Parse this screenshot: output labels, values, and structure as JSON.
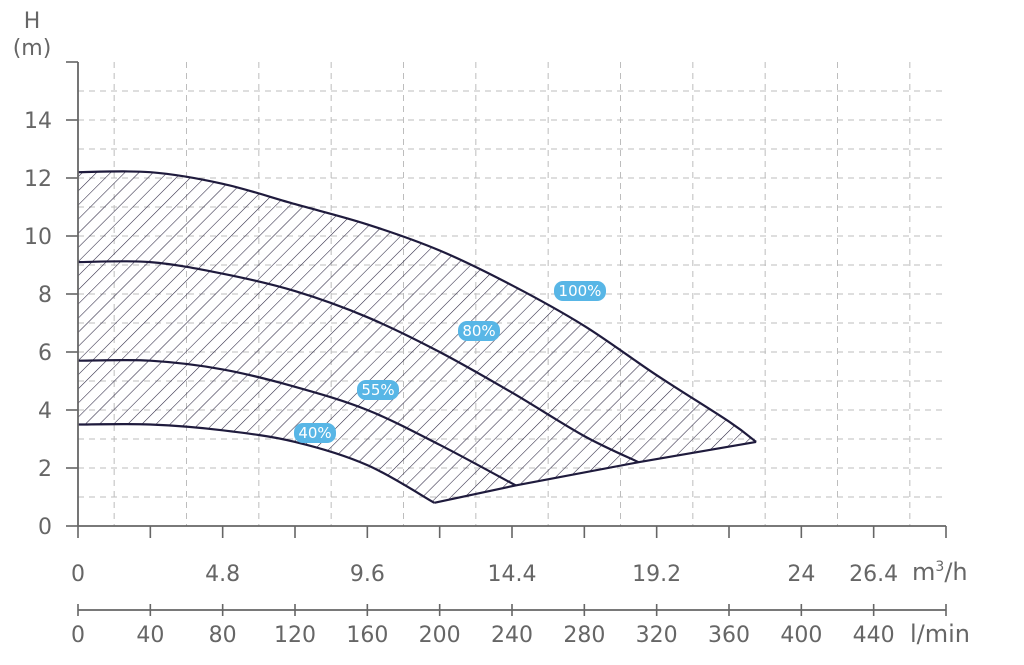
{
  "chart_data": {
    "type": "line",
    "y_axis": {
      "label_top": "H",
      "label_unit": "(m)",
      "ticks": [
        0,
        2,
        4,
        6,
        8,
        10,
        12,
        14
      ],
      "ylim": [
        0,
        16
      ]
    },
    "x_axis_flow_m3h": {
      "unit": "m³/h",
      "unit_base": "m",
      "unit_sup": "3",
      "unit_tail": "/h",
      "ticks": [
        "0",
        "4.8",
        "9.6",
        "14.4",
        "19.2",
        "24",
        "26.4"
      ],
      "tick_values": [
        0,
        4.8,
        9.6,
        14.4,
        19.2,
        24,
        26.4
      ]
    },
    "x_axis_flow_lmin": {
      "unit": "l/min",
      "ticks": [
        "0",
        "40",
        "80",
        "120",
        "160",
        "200",
        "240",
        "280",
        "320",
        "360",
        "400",
        "440"
      ],
      "xlim": [
        0,
        480
      ]
    },
    "grid": true,
    "series": [
      {
        "name": "100%",
        "x": [
          0,
          40,
          80,
          120,
          160,
          200,
          240,
          280,
          320,
          360,
          375
        ],
        "y": [
          12.2,
          12.2,
          11.8,
          11.1,
          10.4,
          9.5,
          8.3,
          6.9,
          5.2,
          3.6,
          2.9
        ]
      },
      {
        "name": "80%",
        "x": [
          0,
          40,
          80,
          120,
          160,
          200,
          240,
          280,
          310
        ],
        "y": [
          9.1,
          9.1,
          8.7,
          8.1,
          7.2,
          6.0,
          4.6,
          3.1,
          2.2
        ]
      },
      {
        "name": "55%",
        "x": [
          0,
          40,
          80,
          120,
          160,
          200,
          242
        ],
        "y": [
          5.7,
          5.7,
          5.4,
          4.8,
          4.0,
          2.8,
          1.4
        ]
      },
      {
        "name": "40%",
        "x": [
          0,
          40,
          80,
          120,
          160,
          197
        ],
        "y": [
          3.5,
          3.5,
          3.3,
          2.9,
          2.1,
          0.8
        ]
      }
    ],
    "min_operating_line": {
      "x": [
        197,
        242,
        310,
        375
      ],
      "y": [
        0.8,
        1.4,
        2.2,
        2.9
      ]
    },
    "hatched_region": "between 40% and 100% curves",
    "label_color": "#58b6e6",
    "line_color": "#1f1b3d"
  }
}
